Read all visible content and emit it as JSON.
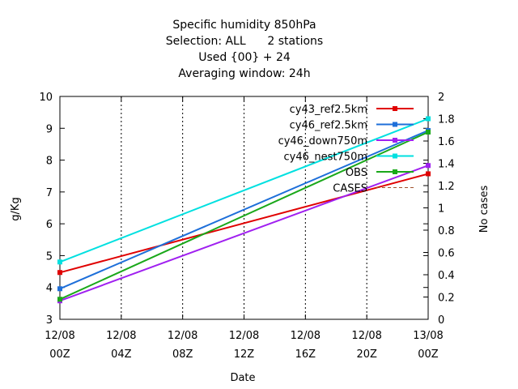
{
  "chart_data": {
    "type": "line",
    "title_lines": [
      "Specific humidity 850hPa",
      "Selection: ALL      2 stations",
      "Used {00} + 24",
      "Averaging window: 24h"
    ],
    "xlabel": "Date",
    "ylabel": "g/Kg",
    "y2label": "No cases",
    "x_ticks": [
      {
        "date": "12/08",
        "hour": "00Z"
      },
      {
        "date": "12/08",
        "hour": "04Z"
      },
      {
        "date": "12/08",
        "hour": "08Z"
      },
      {
        "date": "12/08",
        "hour": "12Z"
      },
      {
        "date": "12/08",
        "hour": "16Z"
      },
      {
        "date": "12/08",
        "hour": "20Z"
      },
      {
        "date": "13/08",
        "hour": "00Z"
      }
    ],
    "xlim": [
      0,
      24
    ],
    "ylim": [
      3,
      10
    ],
    "y_ticks": [
      3,
      4,
      5,
      6,
      7,
      8,
      9,
      10
    ],
    "y2lim": [
      0,
      2
    ],
    "y2_ticks": [
      "0",
      "0.2",
      "0.4",
      "0.6",
      "0.8",
      "1",
      "1.2",
      "1.4",
      "1.6",
      "1.8",
      "2"
    ],
    "legend_position": "top-right",
    "series": [
      {
        "name": "cy43_ref2.5km",
        "color": "#e00000",
        "x": [
          0,
          24
        ],
        "y": [
          4.47,
          7.57
        ]
      },
      {
        "name": "cy46_ref2.5km",
        "color": "#1e6fd9",
        "x": [
          0,
          24
        ],
        "y": [
          3.96,
          8.93
        ]
      },
      {
        "name": "cy46_down750m",
        "color": "#a020f0",
        "x": [
          0,
          24
        ],
        "y": [
          3.58,
          7.83
        ]
      },
      {
        "name": "cy46_nest750m",
        "color": "#00e0e0",
        "x": [
          0,
          24
        ],
        "y": [
          4.8,
          9.3
        ]
      },
      {
        "name": "OBS",
        "color": "#1aa81a",
        "x": [
          0,
          24
        ],
        "y": [
          3.63,
          8.88
        ]
      },
      {
        "name": "CASES",
        "color": "#a0522d",
        "x": [],
        "y": []
      }
    ]
  }
}
